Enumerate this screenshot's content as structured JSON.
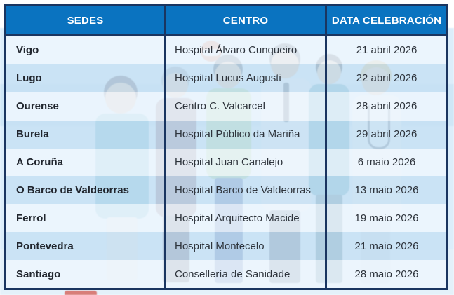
{
  "table": {
    "columns": [
      "SEDES",
      "CENTRO",
      "DATA CELEBRACIÓN"
    ],
    "rows": [
      {
        "sede": "Vigo",
        "centro": "Hospital Álvaro Cunqueiro",
        "data": "21 abril 2026"
      },
      {
        "sede": "Lugo",
        "centro": "Hospital Lucus Augusti",
        "data": "22 abril 2026"
      },
      {
        "sede": "Ourense",
        "centro": "Centro C. Valcarcel",
        "data": "28 abril 2026"
      },
      {
        "sede": "Burela",
        "centro": "Hospital Público da Mariña",
        "data": "29 abril 2026"
      },
      {
        "sede": "A Coruña",
        "centro": "Hospital Juan Canalejo",
        "data": "6 maio 2026"
      },
      {
        "sede": "O Barco de Valdeorras",
        "centro": "Hospital Barco de Valdeorras",
        "data": "13 maio 2026"
      },
      {
        "sede": "Ferrol",
        "centro": "Hospital Arquitecto Macide",
        "data": "19 maio 2026"
      },
      {
        "sede": "Pontevedra",
        "centro": "Hospital Montecelo",
        "data": "21 maio 2026"
      },
      {
        "sede": "Santiago",
        "centro": "Consellería de Sanidade",
        "data": "28 maio 2026"
      }
    ]
  },
  "colors": {
    "header_bg": "#0a73c0",
    "border_navy": "#1a3560",
    "row_light": "#ecf5fd",
    "row_alt": "#c6e0f3",
    "header_text": "#ffffff",
    "body_text": "#2e343c"
  }
}
